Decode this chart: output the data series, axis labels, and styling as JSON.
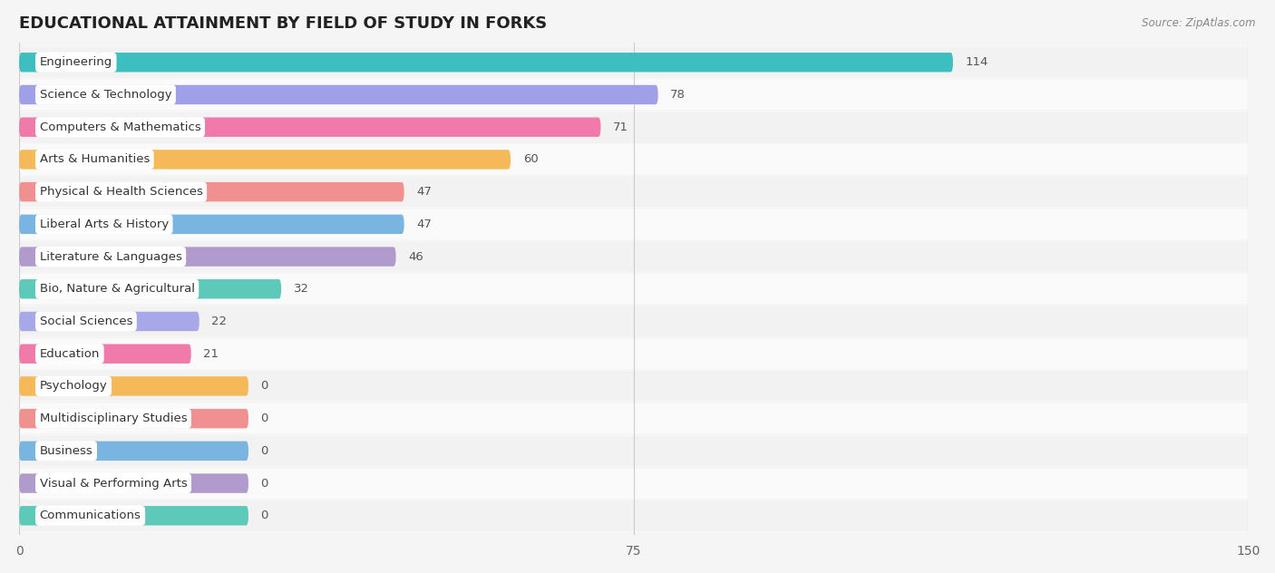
{
  "title": "EDUCATIONAL ATTAINMENT BY FIELD OF STUDY IN FORKS",
  "source": "Source: ZipAtlas.com",
  "categories": [
    "Engineering",
    "Science & Technology",
    "Computers & Mathematics",
    "Arts & Humanities",
    "Physical & Health Sciences",
    "Liberal Arts & History",
    "Literature & Languages",
    "Bio, Nature & Agricultural",
    "Social Sciences",
    "Education",
    "Psychology",
    "Multidisciplinary Studies",
    "Business",
    "Visual & Performing Arts",
    "Communications"
  ],
  "values": [
    114,
    78,
    71,
    60,
    47,
    47,
    46,
    32,
    22,
    21,
    0,
    0,
    0,
    0,
    0
  ],
  "bar_colors": [
    "#3dbfbf",
    "#a0a0e8",
    "#f07bab",
    "#f5b95a",
    "#f09090",
    "#7ab4e0",
    "#b09bcc",
    "#5cc9b9",
    "#a8a8e8",
    "#f07bab",
    "#f5b95a",
    "#f09090",
    "#7ab4e0",
    "#b09bcc",
    "#5cc9b9"
  ],
  "bar_bg_colors": [
    "#3dbfbf",
    "#a0a0e8",
    "#f07bab",
    "#f5b95a",
    "#f09090",
    "#7ab4e0",
    "#b09bcc",
    "#5cc9b9",
    "#a8a8e8",
    "#f07bab",
    "#f5b95a",
    "#f09090",
    "#7ab4e0",
    "#b09bcc",
    "#5cc9b9"
  ],
  "row_bg_colors": [
    "#f2f2f2",
    "#fafafa"
  ],
  "xlim": [
    0,
    150
  ],
  "xticks": [
    0,
    75,
    150
  ],
  "background_color": "#f5f5f5",
  "title_fontsize": 13,
  "label_fontsize": 9.5,
  "value_fontsize": 9.5,
  "zero_bar_width": 28
}
